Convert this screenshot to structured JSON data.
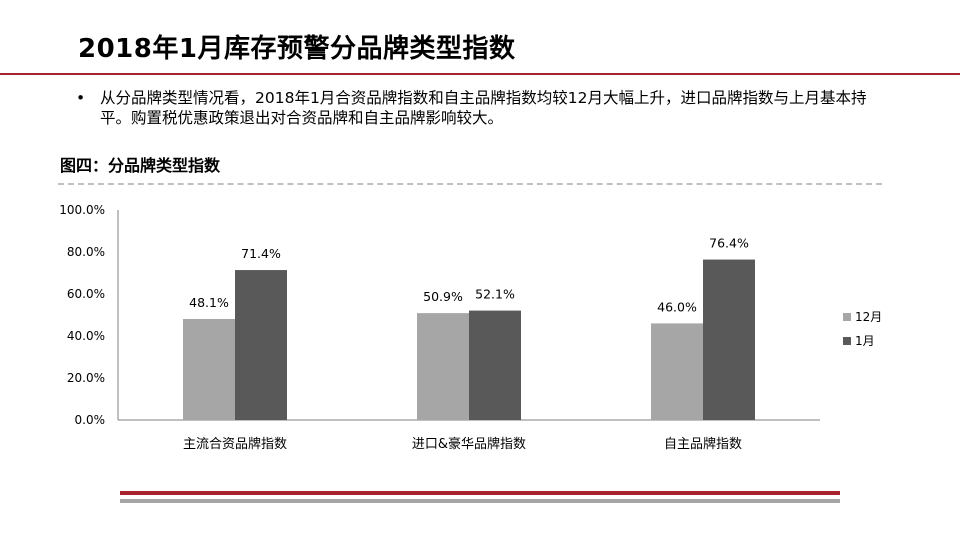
{
  "page": {
    "title": "2018年1月库存预警分品牌类型指数",
    "bullet_mark": "•",
    "bullet_text": "从分品牌类型情况看，2018年1月合资品牌指数和自主品牌指数均较12月大幅上升，进口品牌指数与上月基本持平。购置税优惠政策退出对合资品牌和自主品牌影响较大。",
    "figure_title": "图四：分品牌类型指数"
  },
  "colors": {
    "accent_red": "#a7242c",
    "series_12": "#a6a6a6",
    "series_1": "#595959",
    "axis": "#808080"
  },
  "chart_data": {
    "type": "bar",
    "title": "图四：分品牌类型指数",
    "categories": [
      "主流合资品牌指数",
      "进口&豪华品牌指数",
      "自主品牌指数"
    ],
    "series": [
      {
        "name": "12月",
        "values": [
          48.1,
          50.9,
          46.0
        ],
        "labels": [
          "48.1%",
          "50.9%",
          "46.0%"
        ]
      },
      {
        "name": "1月",
        "values": [
          71.4,
          52.1,
          76.4
        ],
        "labels": [
          "71.4%",
          "52.1%",
          "76.4%"
        ]
      }
    ],
    "ylim": [
      0,
      100
    ],
    "yticks": [
      "0.0%",
      "20.0%",
      "40.0%",
      "60.0%",
      "80.0%",
      "100.0%"
    ],
    "ytick_values": [
      0,
      20,
      40,
      60,
      80,
      100
    ],
    "legend_position": "right",
    "grid": false
  }
}
